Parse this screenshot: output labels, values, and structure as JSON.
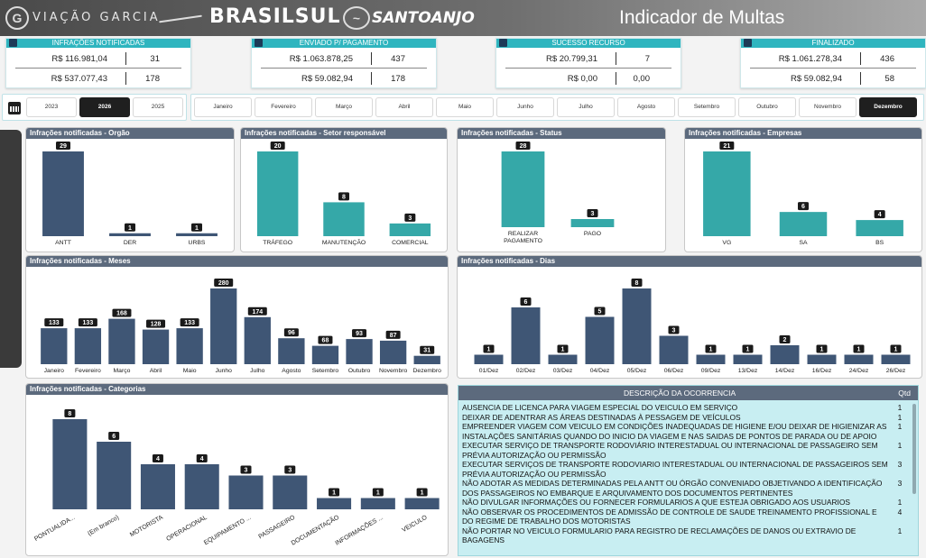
{
  "header": {
    "brands": [
      "VIAÇÃO GARCIA",
      "BRASILSUL",
      "SANTOANJO"
    ],
    "title": "Indicador de Multas"
  },
  "kpis": [
    {
      "label": "INFRAÇÕES NOTIFICADAS",
      "rows": [
        [
          "R$ 116.981,04",
          "31"
        ],
        [
          "R$ 537.077,43",
          "178"
        ]
      ]
    },
    {
      "label": "ENVIADO P/ PAGAMENTO",
      "rows": [
        [
          "R$ 1.063.878,25",
          "437"
        ],
        [
          "R$ 59.082,94",
          "178"
        ]
      ]
    },
    {
      "label": "SUCESSO RECURSO",
      "rows": [
        [
          "R$ 20.799,31",
          "7"
        ],
        [
          "R$ 0,00",
          "0,00"
        ]
      ]
    },
    {
      "label": "FINALIZADO",
      "rows": [
        [
          "R$ 1.061.278,34",
          "436"
        ],
        [
          "R$ 59.082,94",
          "58"
        ]
      ]
    }
  ],
  "years": {
    "options": [
      "2023",
      "2026",
      "2025"
    ],
    "selected": "2026"
  },
  "months": {
    "options": [
      "Janeiro",
      "Fevereiro",
      "Março",
      "Abril",
      "Maio",
      "Junho",
      "Julho",
      "Agosto",
      "Setembro",
      "Outubro",
      "Novembro",
      "Dezembro"
    ],
    "selected": "Dezembro"
  },
  "colors": {
    "navy": "#3f5675",
    "teal": "#35a8a8",
    "header": "#5c6a7d",
    "kpi": "#2fb5bf"
  },
  "charts": [
    {
      "id": "orgao",
      "title": "Infrações notificadas - Orgão",
      "chart_data": {
        "type": "bar",
        "categories": [
          "ANTT",
          "DER",
          "URBS"
        ],
        "values": [
          29,
          1,
          1
        ],
        "color": "#3f5675"
      }
    },
    {
      "id": "setor",
      "title": "Infrações notificadas - Setor responsável",
      "chart_data": {
        "type": "bar",
        "categories": [
          "TRÁFEGO",
          "MANUTENÇÃO",
          "COMERCIAL"
        ],
        "values": [
          20,
          8,
          3
        ],
        "color": "#35a8a8"
      }
    },
    {
      "id": "status",
      "title": "Infrações notificadas - Status",
      "chart_data": {
        "type": "bar",
        "categories": [
          "REALIZAR PAGAMENTO",
          "PAGO"
        ],
        "values": [
          28,
          3
        ],
        "color": "#35a8a8"
      }
    },
    {
      "id": "empresas",
      "title": "Infrações notificadas - Empresas",
      "chart_data": {
        "type": "bar",
        "categories": [
          "VG",
          "SA",
          "BS"
        ],
        "values": [
          21,
          6,
          4
        ],
        "color": "#35a8a8"
      }
    },
    {
      "id": "meses",
      "title": "Infrações notificadas - Meses",
      "chart_data": {
        "type": "bar",
        "categories": [
          "Janeiro",
          "Fevereiro",
          "Março",
          "Abril",
          "Maio",
          "Junho",
          "Julho",
          "Agosto",
          "Setembro",
          "Outubro",
          "Novembro",
          "Dezembro"
        ],
        "values": [
          133,
          133,
          168,
          128,
          133,
          280,
          174,
          96,
          68,
          93,
          87,
          31
        ],
        "color": "#3f5675"
      }
    },
    {
      "id": "dias",
      "title": "Infrações notificadas - Dias",
      "chart_data": {
        "type": "bar",
        "categories": [
          "01/Dez",
          "02/Dez",
          "03/Dez",
          "04/Dez",
          "05/Dez",
          "06/Dez",
          "09/Dez",
          "13/Dez",
          "14/Dez",
          "16/Dez",
          "24/Dez",
          "26/Dez"
        ],
        "values": [
          1,
          6,
          1,
          5,
          8,
          3,
          1,
          1,
          2,
          1,
          1,
          1
        ],
        "color": "#3f5675"
      }
    },
    {
      "id": "categorias",
      "title": "Infrações notificadas - Categorias",
      "chart_data": {
        "type": "bar",
        "categories": [
          "PONTUALIDA...",
          "(Em branco)",
          "MOTORISTA",
          "OPERACIONAL",
          "EQUIPAMENTO ...",
          "PASSAGEIRO",
          "DOCUMENTAÇÃO",
          "INFORMAÇÕES ...",
          "VEICULO"
        ],
        "values": [
          8,
          6,
          4,
          4,
          3,
          3,
          1,
          1,
          1
        ],
        "color": "#3f5675"
      }
    }
  ],
  "table": {
    "headers": [
      "DESCRIÇÃO DA OCORRENCIA",
      "Qtd"
    ],
    "rows": [
      {
        "desc": "AUSENCIA DE LICENCA PARA VIAGEM ESPECIAL DO VEICULO EM SERVIÇO",
        "qtd": "1"
      },
      {
        "desc": "DEIXAR DE ADENTRAR AS ÁREAS DESTINADAS À PESSAGEM DE VEÍCULOS",
        "qtd": "1"
      },
      {
        "desc": "EMPREENDER VIAGEM COM VEICULO EM CONDIÇÕES INADEQUADAS DE HIGIENE E/OU DEIXAR DE HIGIENIZAR AS INSTALAÇÕES SANITÁRIAS QUANDO DO INICIO DA VIAGEM E NAS SAIDAS DE PONTOS DE PARADA OU DE APOIO",
        "qtd": "1"
      },
      {
        "desc": "EXECUTAR SERVIÇO DE TRANSPORTE RODOVIÁRIO INTERESTADUAL OU INTERNACIONAL DE PASSAGEIRO SEM PRÉVIA AUTORIZAÇÃO OU PERMISSÃO",
        "qtd": "1"
      },
      {
        "desc": "EXECUTAR SERVIÇOS DE TRANSPORTE RODOVIARIO INTERESTADUAL OU INTERNACIONAL DE PASSAGEIROS SEM PRÉVIA AUTORIZAÇÃO OU PERMISSÃO",
        "qtd": "3"
      },
      {
        "desc": "NÃO ADOTAR AS MEDIDAS DETERMINADAS PELA ANTT OU ÓRGÃO CONVENIADO OBJETIVANDO A IDENTIFICAÇÃO DOS PASSAGEIROS NO EMBARQUE E ARQUIVAMENTO DOS DOCUMENTOS PERTINENTES",
        "qtd": "3"
      },
      {
        "desc": "NÃO DIVULGAR INFORMAÇÕES OU FORNECER FORMULARIOS A QUE ESTEJA OBRIGADO AOS USUARIOS",
        "qtd": "1"
      },
      {
        "desc": "NÃO OBSERVAR OS PROCEDIMENTOS DE ADMISSÃO DE CONTROLE DE SAUDE TREINAMENTO PROFISSIONAL E DO REGIME DE TRABALHO DOS MOTORISTAS",
        "qtd": "4"
      },
      {
        "desc": "NÃO PORTAR NO VEICULO FORMULARIO PARA REGISTRO DE RECLAMAÇÕES DE DANOS OU EXTRAVIO DE BAGAGENS",
        "qtd": "1"
      }
    ]
  }
}
